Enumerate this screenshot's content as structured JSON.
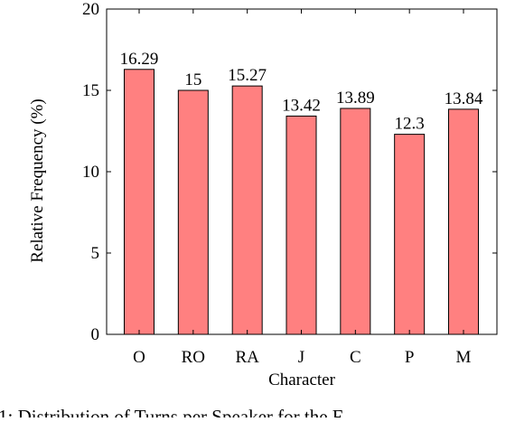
{
  "chart_data": {
    "type": "bar",
    "categories": [
      "O",
      "RO",
      "RA",
      "J",
      "C",
      "P",
      "M"
    ],
    "values": [
      16.29,
      15,
      15.27,
      13.42,
      13.89,
      12.3,
      13.84
    ],
    "value_labels": [
      "16.29",
      "15",
      "15.27",
      "13.42",
      "13.89",
      "12.3",
      "13.84"
    ],
    "xlabel": "Character",
    "ylabel": "Relative Frequency (%)",
    "ylim": [
      0,
      20
    ],
    "yticks": [
      0,
      5,
      10,
      15,
      20
    ],
    "ytick_labels": [
      "0",
      "5",
      "10",
      "15",
      "20"
    ],
    "grid": false,
    "bar_color": "#ff8080",
    "bar_edge_color": "#000000"
  },
  "caption": {
    "text": "1: Distribution of Turns per Speaker for the F"
  }
}
